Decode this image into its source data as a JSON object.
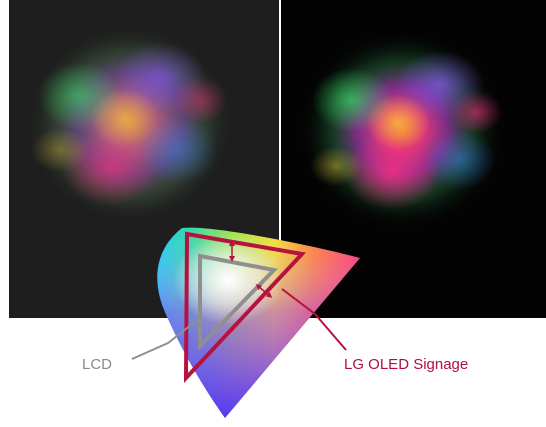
{
  "labels": {
    "lcd": "LCD",
    "oled": "LG OLED Signage"
  },
  "panels": {
    "left": {
      "background": "#1e1e1e",
      "description_role": "LCD comparison panel"
    },
    "right": {
      "background": "#030303",
      "description_role": "OLED comparison panel"
    }
  },
  "colors": {
    "lcd_line": "#8f8f8f",
    "oled_line": "#b5123f",
    "lcd_text": "#8a8a8a",
    "oled_text": "#b0103f",
    "arrow": "#b5123f"
  }
}
